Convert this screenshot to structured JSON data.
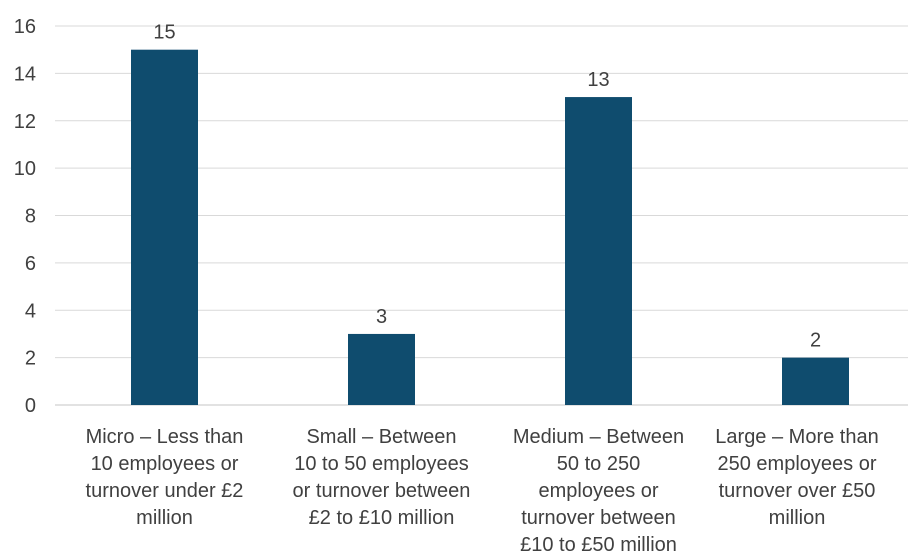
{
  "chart_data": {
    "type": "bar",
    "title": "",
    "xlabel": "",
    "ylabel": "",
    "categories": [
      "Micro – Less than\n10 employees or\nturnover under £2\nmillion",
      "Small – Between\n10 to 50 employees\nor turnover between\n£2 to £10 million",
      "Medium – Between\n50 to 250\nemployees or\nturnover between\n£10 to £50 million",
      "Large – More than\n250 employees or\nturnover over £50\nmillion"
    ],
    "values": [
      15,
      3,
      13,
      2
    ],
    "ylim": [
      0,
      16
    ],
    "yticks": [
      0,
      2,
      4,
      6,
      8,
      10,
      12,
      14,
      16
    ],
    "grid": true,
    "legend": "none",
    "bar_color": "#0f4c6e",
    "grid_color": "#d9d9d9",
    "text_color": "#404040"
  }
}
